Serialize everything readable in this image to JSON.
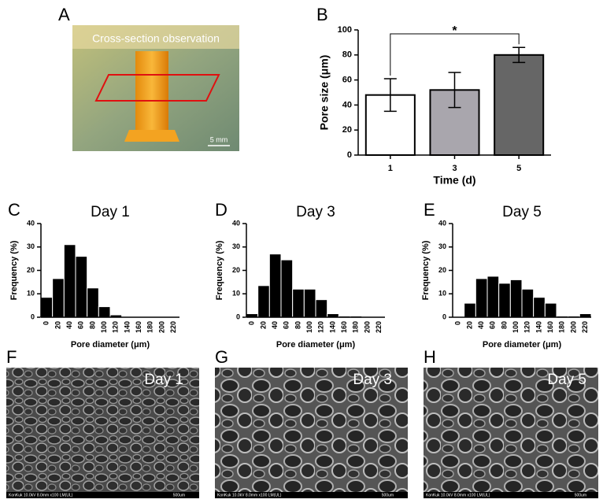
{
  "letters": [
    "A",
    "B",
    "C",
    "D",
    "E",
    "F",
    "G",
    "H"
  ],
  "photo": {
    "caption": "Cross-section observation",
    "scale": "5 mm"
  },
  "sem": [
    {
      "label": "Day 1",
      "footer": "KonKuk 10.0kV 8.0mm x100 LM(UL)",
      "scale": "500um"
    },
    {
      "label": "Day 3",
      "footer": "KonKuk 10.0kV 8.0mm x100 LM(UL)",
      "scale": "500um"
    },
    {
      "label": "Day 5",
      "footer": "KonKuk 10.0kV 8.0mm x100 LM(UL)",
      "scale": "500um"
    }
  ],
  "chart_data": [
    {
      "type": "bar",
      "xlabel": "Time (d)",
      "ylabel": "Pore size (μm)",
      "categories": [
        "1",
        "3",
        "5"
      ],
      "values": [
        48,
        52,
        80
      ],
      "errors": [
        13,
        14,
        6
      ],
      "colors": [
        "#ffffff",
        "#a9a6ad",
        "#666666"
      ],
      "annotation": "*",
      "ylim": [
        0,
        100
      ],
      "yticks": [
        0,
        20,
        40,
        60,
        80,
        100
      ]
    },
    {
      "type": "bar",
      "title": "Day 1",
      "xlabel": "Pore diameter (μm)",
      "ylabel": "Frequency (%)",
      "categories": [
        "0",
        "20",
        "40",
        "60",
        "80",
        "100",
        "120",
        "140",
        "160",
        "180",
        "200",
        "220"
      ],
      "values": [
        8.5,
        16.5,
        31,
        26,
        12.5,
        4.5,
        1,
        0,
        0,
        0,
        0,
        0
      ],
      "color": "#000000",
      "ylim": [
        0,
        40
      ],
      "yticks": [
        0,
        10,
        20,
        30,
        40
      ]
    },
    {
      "type": "bar",
      "title": "Day 3",
      "xlabel": "Pore diameter (μm)",
      "ylabel": "Frequency (%)",
      "categories": [
        "0",
        "20",
        "40",
        "60",
        "80",
        "100",
        "120",
        "140",
        "160",
        "180",
        "200",
        "220"
      ],
      "values": [
        1.5,
        13.5,
        27,
        24.5,
        12,
        12,
        7.5,
        1.5,
        0.5,
        0.5,
        0,
        0
      ],
      "color": "#000000",
      "ylim": [
        0,
        40
      ],
      "yticks": [
        0,
        10,
        20,
        30,
        40
      ]
    },
    {
      "type": "bar",
      "title": "Day 5",
      "xlabel": "Pore diameter (μm)",
      "ylabel": "Frequency (%)",
      "categories": [
        "0",
        "20",
        "40",
        "60",
        "80",
        "100",
        "120",
        "140",
        "160",
        "180",
        "200",
        "220"
      ],
      "values": [
        0,
        6,
        16.5,
        17.5,
        14.5,
        16,
        12,
        8.5,
        6,
        0.5,
        0.5,
        1.5
      ],
      "color": "#000000",
      "ylim": [
        0,
        40
      ],
      "yticks": [
        0,
        10,
        20,
        30,
        40
      ]
    }
  ]
}
